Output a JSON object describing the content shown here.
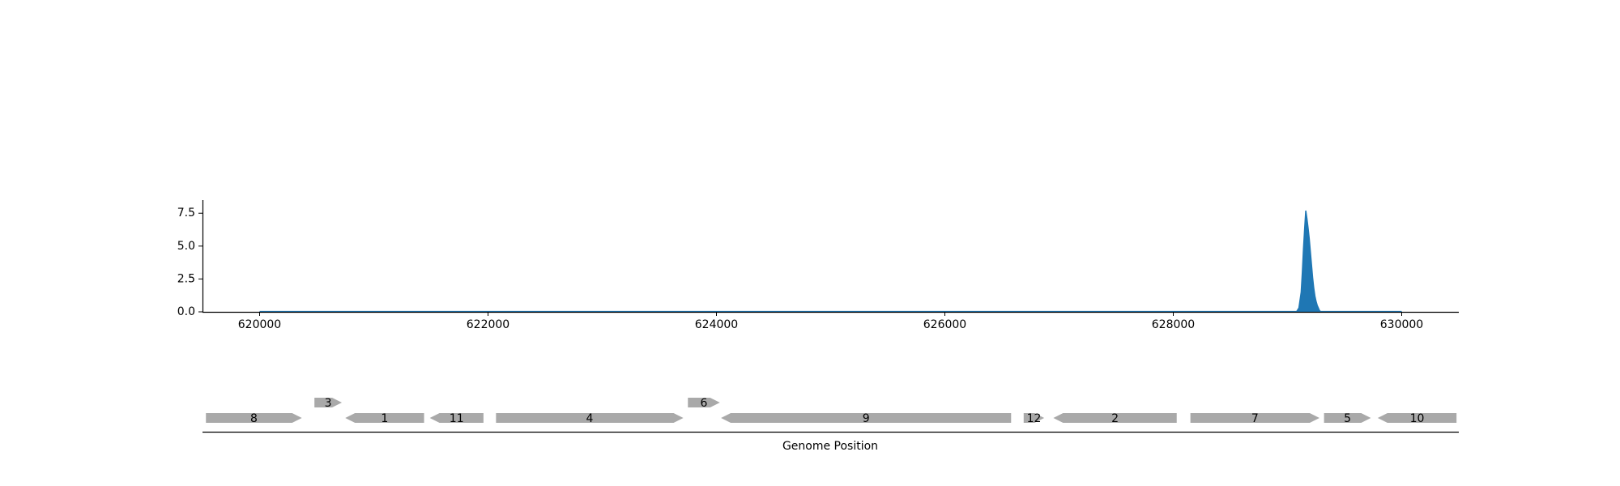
{
  "chart_data": [
    {
      "type": "area",
      "title": "",
      "xlabel": "",
      "ylabel": "",
      "xlim": [
        619500,
        630500
      ],
      "ylim": [
        0,
        8.5
      ],
      "x_ticks": [
        620000,
        622000,
        624000,
        626000,
        628000,
        630000
      ],
      "y_ticks": [
        0.0,
        2.5,
        5.0,
        7.5
      ],
      "grid": false,
      "series": [
        {
          "color": "#1f77b4",
          "x": [
            620000,
            629080,
            629100,
            629120,
            629130,
            629140,
            629150,
            629160,
            629170,
            629180,
            629190,
            629200,
            629210,
            629220,
            629230,
            629240,
            629250,
            629260,
            629270,
            629280,
            629290,
            630000
          ],
          "values": [
            0.02,
            0.02,
            0.3,
            1.5,
            3.0,
            4.8,
            6.3,
            7.7,
            7.1,
            6.4,
            5.6,
            4.6,
            3.6,
            2.6,
            1.8,
            1.2,
            0.8,
            0.5,
            0.3,
            0.1,
            0.02,
            0.02
          ]
        }
      ]
    },
    {
      "type": "gene_track",
      "xlabel": "Genome Position",
      "color": "#a9a9a9",
      "genes": [
        {
          "label": "8",
          "start": 619530,
          "end": 620370,
          "strand": "+",
          "row": 0
        },
        {
          "label": "3",
          "start": 620480,
          "end": 620720,
          "strand": "+",
          "row": 1
        },
        {
          "label": "1",
          "start": 620750,
          "end": 621440,
          "strand": "-",
          "row": 0
        },
        {
          "label": "11",
          "start": 621490,
          "end": 621960,
          "strand": "-",
          "row": 0
        },
        {
          "label": "4",
          "start": 622070,
          "end": 623710,
          "strand": "+",
          "row": 0
        },
        {
          "label": "6",
          "start": 623750,
          "end": 624030,
          "strand": "+",
          "row": 1
        },
        {
          "label": "9",
          "start": 624040,
          "end": 626580,
          "strand": "-",
          "row": 0
        },
        {
          "label": "12",
          "start": 626690,
          "end": 626870,
          "strand": "+",
          "row": 0
        },
        {
          "label": "2",
          "start": 626950,
          "end": 628030,
          "strand": "-",
          "row": 0
        },
        {
          "label": "7",
          "start": 628150,
          "end": 629280,
          "strand": "+",
          "row": 0
        },
        {
          "label": "5",
          "start": 629320,
          "end": 629730,
          "strand": "+",
          "row": 0
        },
        {
          "label": "10",
          "start": 629790,
          "end": 630480,
          "strand": "-",
          "row": 0
        }
      ]
    }
  ]
}
